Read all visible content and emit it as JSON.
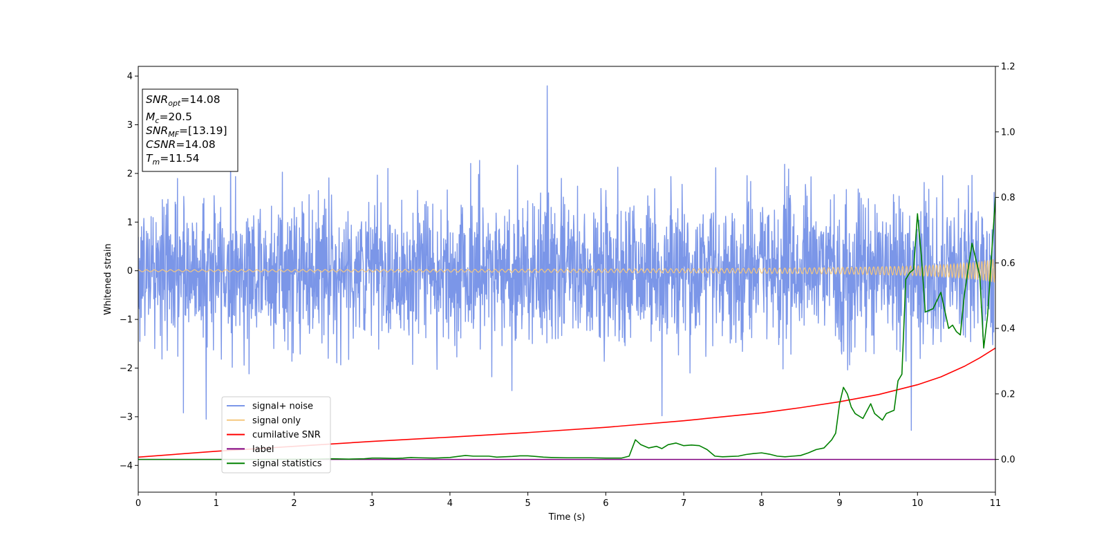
{
  "chart_data": {
    "type": "line",
    "title": "",
    "xlabel": "Time (s)",
    "ylabel": "Whitened strain",
    "xlim": [
      0,
      11
    ],
    "ylim": [
      -4.55,
      4.2
    ],
    "y2lim": [
      -0.1,
      1.2
    ],
    "xticks": [
      0,
      1,
      2,
      3,
      4,
      5,
      6,
      7,
      8,
      9,
      10,
      11
    ],
    "yticks": [
      -4,
      -3,
      -2,
      -1,
      0,
      1,
      2,
      3,
      4
    ],
    "y2ticks": [
      0.0,
      0.2,
      0.4,
      0.6,
      0.8,
      1.0,
      1.2
    ],
    "yticklabels": [
      "−4",
      "−3",
      "−2",
      "−1",
      "0",
      "1",
      "2",
      "3",
      "4"
    ],
    "y2ticklabels": [
      "0.0",
      "0.2",
      "0.4",
      "0.6",
      "0.8",
      "1.0",
      "1.2"
    ],
    "grid": false,
    "legend_position": "lower-left",
    "info_box": {
      "lines": [
        {
          "var": "SNR",
          "sub": "opt",
          "value": "=14.08"
        },
        {
          "var": "M",
          "sub": "c",
          "value": "=20.5"
        },
        {
          "var": "SNR",
          "sub": "MF",
          "value": "=[13.19]"
        },
        {
          "var": "CSNR",
          "sub": "",
          "value": "=14.08"
        },
        {
          "var": "T",
          "sub": "m",
          "value": "=11.54"
        }
      ]
    },
    "series": [
      {
        "name": "signal+ noise",
        "color": "#7b96e8",
        "axis": "left",
        "noise_sigma": 0.75,
        "samples": 2600,
        "peak_points": [
          [
            5.25,
            3.8
          ],
          [
            0.87,
            -3.05
          ],
          [
            9.92,
            -3.28
          ],
          [
            0.58,
            -2.92
          ],
          [
            6.72,
            -2.98
          ]
        ]
      },
      {
        "name": "signal only",
        "color": "#f5c77e",
        "axis": "left",
        "chirp": {
          "t_merge": 11.54,
          "amp_start": 0.02,
          "amp_end": 0.25
        }
      },
      {
        "name": "cumilative SNR",
        "color": "#ff0000",
        "axis": "right",
        "x": [
          0,
          1,
          2,
          3,
          4,
          5,
          6,
          7,
          8,
          8.5,
          9,
          9.5,
          10,
          10.3,
          10.6,
          10.8,
          11
        ],
        "y": [
          0.007,
          0.025,
          0.04,
          0.055,
          0.068,
          0.082,
          0.098,
          0.118,
          0.142,
          0.158,
          0.176,
          0.198,
          0.228,
          0.252,
          0.284,
          0.31,
          0.34
        ]
      },
      {
        "name": "label",
        "color": "#800080",
        "axis": "right",
        "x": [
          0,
          11
        ],
        "y": [
          0,
          0
        ]
      },
      {
        "name": "signal statistics",
        "color": "#008000",
        "axis": "right",
        "x": [
          0,
          1.5,
          2.3,
          2.5,
          2.7,
          2.9,
          3.0,
          3.1,
          3.3,
          3.4,
          3.5,
          3.6,
          3.8,
          4.0,
          4.1,
          4.2,
          4.3,
          4.5,
          4.6,
          4.7,
          4.8,
          4.9,
          5.0,
          5.1,
          5.2,
          5.3,
          5.5,
          5.8,
          6.0,
          6.2,
          6.3,
          6.38,
          6.45,
          6.55,
          6.65,
          6.72,
          6.8,
          6.9,
          7.0,
          7.1,
          7.2,
          7.3,
          7.4,
          7.5,
          7.6,
          7.7,
          7.8,
          7.9,
          8.0,
          8.1,
          8.2,
          8.3,
          8.4,
          8.5,
          8.6,
          8.7,
          8.8,
          8.9,
          8.95,
          9.0,
          9.05,
          9.1,
          9.15,
          9.2,
          9.3,
          9.4,
          9.45,
          9.5,
          9.55,
          9.6,
          9.7,
          9.75,
          9.8,
          9.85,
          9.9,
          9.95,
          10.0,
          10.05,
          10.1,
          10.2,
          10.3,
          10.4,
          10.45,
          10.5,
          10.55,
          10.6,
          10.7,
          10.8,
          10.85,
          10.9,
          11.0
        ],
        "y": [
          0.0,
          0.0,
          0.001,
          0.002,
          0.001,
          0.002,
          0.004,
          0.004,
          0.003,
          0.004,
          0.006,
          0.005,
          0.004,
          0.006,
          0.009,
          0.012,
          0.01,
          0.01,
          0.007,
          0.008,
          0.009,
          0.011,
          0.011,
          0.009,
          0.007,
          0.006,
          0.005,
          0.005,
          0.004,
          0.004,
          0.01,
          0.06,
          0.045,
          0.035,
          0.04,
          0.033,
          0.045,
          0.05,
          0.042,
          0.044,
          0.042,
          0.03,
          0.01,
          0.008,
          0.009,
          0.01,
          0.015,
          0.018,
          0.02,
          0.016,
          0.01,
          0.008,
          0.01,
          0.012,
          0.02,
          0.03,
          0.035,
          0.06,
          0.08,
          0.17,
          0.22,
          0.2,
          0.16,
          0.14,
          0.125,
          0.17,
          0.14,
          0.13,
          0.12,
          0.14,
          0.15,
          0.24,
          0.26,
          0.55,
          0.57,
          0.58,
          0.75,
          0.62,
          0.45,
          0.46,
          0.51,
          0.4,
          0.41,
          0.39,
          0.38,
          0.5,
          0.66,
          0.56,
          0.34,
          0.44,
          0.8
        ]
      }
    ]
  }
}
